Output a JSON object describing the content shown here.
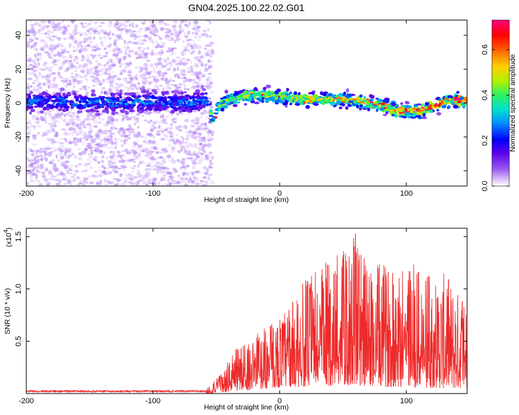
{
  "figure": {
    "title": "GN04.2025.100.22.02.G01"
  },
  "chart_data": [
    {
      "type": "heatmap",
      "name": "spectrogram",
      "xlabel": "Height of straight line (km)",
      "ylabel": "Frequency (Hz)",
      "xlim": [
        -200,
        148
      ],
      "ylim": [
        -49,
        49
      ],
      "x_ticks": [
        -200,
        -100,
        0,
        100
      ],
      "y_ticks": [
        40,
        20,
        0,
        -20,
        -40
      ],
      "grid": false,
      "colorbar": {
        "label": "Normalized spectral amplitude",
        "range": [
          0.0,
          0.73
        ],
        "ticks": [
          0.0,
          0.2,
          0.4,
          0.6
        ],
        "colormap": "rainbow"
      },
      "centerline_frequency": [
        [
          -200,
          1
        ],
        [
          -150,
          0
        ],
        [
          -100,
          1
        ],
        [
          -70,
          0
        ],
        [
          -58,
          2
        ],
        [
          -55,
          -4
        ],
        [
          -52,
          -12
        ],
        [
          -50,
          -3
        ],
        [
          -40,
          2
        ],
        [
          -20,
          5
        ],
        [
          0,
          4
        ],
        [
          20,
          2
        ],
        [
          50,
          2
        ],
        [
          80,
          -1
        ],
        [
          95,
          -5
        ],
        [
          110,
          -5
        ],
        [
          125,
          0
        ],
        [
          135,
          1
        ],
        [
          148,
          2
        ]
      ],
      "notes": "Diffuse low-amplitude speckle across full frequency range for heights below about -55 km; concentrated band near 0 Hz with amplitudes up to about 0.7 at higher heights."
    },
    {
      "type": "line",
      "name": "snr",
      "xlabel": "Height of straight line (km)",
      "ylabel": "SNR (10 * v/v)",
      "y_multiplier_label": "(x10",
      "y_multiplier_exp": "4",
      "xlim": [
        -200,
        148
      ],
      "ylim": [
        0,
        1.58
      ],
      "x_ticks": [
        -200,
        -100,
        0,
        100
      ],
      "y_ticks": [
        0.5,
        1.0,
        1.5
      ],
      "grid": false,
      "series": [
        {
          "color": "#ee2a2a",
          "envelope": [
            [
              -200,
              0.02
            ],
            [
              -60,
              0.03
            ],
            [
              -45,
              0.2
            ],
            [
              -35,
              0.45
            ],
            [
              -25,
              0.5
            ],
            [
              -15,
              0.6
            ],
            [
              0,
              0.75
            ],
            [
              10,
              0.9
            ],
            [
              20,
              1.1
            ],
            [
              30,
              1.2
            ],
            [
              45,
              1.35
            ],
            [
              55,
              1.4
            ],
            [
              60,
              1.58
            ],
            [
              70,
              1.2
            ],
            [
              80,
              1.25
            ],
            [
              90,
              1.2
            ],
            [
              100,
              1.35
            ],
            [
              110,
              1.2
            ],
            [
              120,
              1.1
            ],
            [
              130,
              1.15
            ],
            [
              140,
              1.0
            ],
            [
              148,
              0.9
            ]
          ],
          "baseline": [
            [
              -200,
              0.0
            ],
            [
              -55,
              0.0
            ],
            [
              -40,
              0.02
            ],
            [
              0,
              0.06
            ],
            [
              50,
              0.08
            ],
            [
              100,
              0.06
            ],
            [
              148,
              0.05
            ]
          ]
        }
      ]
    }
  ]
}
